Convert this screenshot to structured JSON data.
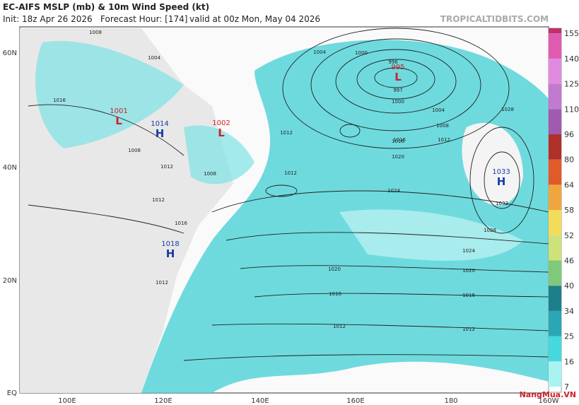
{
  "header": {
    "title": "EC-AIFS MSLP (mb) & 10m Wind Speed (kt)",
    "init": "Init: 18z Apr 26 2026",
    "forecast_hour": "Forecast Hour: [174]",
    "valid": "valid at 00z Mon, May 04 2026",
    "source": "TROPICALTIDBITS.COM"
  },
  "map": {
    "lat_labels": [
      "60N",
      "40N",
      "20N",
      "EQ"
    ],
    "lon_labels": [
      "100E",
      "120E",
      "140E",
      "160E",
      "180",
      "160W"
    ],
    "centers": [
      {
        "label": "L",
        "pressure": "1001"
      },
      {
        "label": "H",
        "pressure": "1014"
      },
      {
        "label": "L",
        "pressure": "1002"
      },
      {
        "label": "L",
        "pressure": "995"
      },
      {
        "label": "H",
        "pressure": "1033"
      },
      {
        "label": "H",
        "pressure": "1018"
      }
    ],
    "isobar_labels": [
      "1008",
      "1004",
      "1004",
      "1000",
      "996",
      "997",
      "1000",
      "1004",
      "1008",
      "1012",
      "1016",
      "1020",
      "1024",
      "1028",
      "1032",
      "1028",
      "1024",
      "1020",
      "1016",
      "1012",
      "1020",
      "1016",
      "1012",
      "1012",
      "1012",
      "1016",
      "1008",
      "1012",
      "1016",
      "1012",
      "1008",
      "1016",
      "1012"
    ]
  },
  "colorbar": {
    "ticks": [
      7,
      16,
      25,
      34,
      40,
      46,
      52,
      58,
      64,
      80,
      96,
      110,
      125,
      140,
      155
    ],
    "colors": [
      "#aaf3f3",
      "#45d8dc",
      "#2aa6b4",
      "#1d7f8a",
      "#7ec97a",
      "#cfe27a",
      "#f2dc5a",
      "#f0a640",
      "#e05a2a",
      "#b0302a",
      "#a05ab0",
      "#c07ad0",
      "#e28ae0",
      "#e05ab0",
      "#c0306a"
    ]
  },
  "watermark": "NangMua.VN"
}
